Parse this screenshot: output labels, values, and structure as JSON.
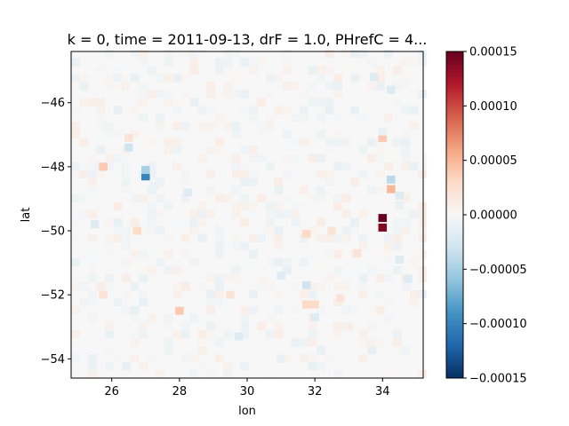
{
  "chart_data": {
    "type": "heatmap",
    "title": "k = 0, time = 2011-09-13, drF = 1.0, PHrefC = 4...",
    "xlabel": "lon",
    "ylabel": "lat",
    "xlim": [
      24.8,
      35.2
    ],
    "ylim": [
      -54.6,
      -44.4
    ],
    "x_ticks": [
      26,
      28,
      30,
      32,
      34
    ],
    "x_tick_labels": [
      "26",
      "28",
      "30",
      "32",
      "34"
    ],
    "y_ticks": [
      -46,
      -48,
      -50,
      -52,
      -54
    ],
    "y_tick_labels": [
      "−46",
      "−48",
      "−50",
      "−52",
      "−54"
    ],
    "grid": false,
    "colormap": "RdBu_r",
    "clim": [
      -0.00015,
      0.00015
    ],
    "colorbar_ticks": [
      0.00015,
      0.0001,
      5e-05,
      0,
      -5e-05,
      -0.0001,
      -0.00015
    ],
    "colorbar_tick_labels": [
      "0.00015",
      "0.00010",
      "0.00005",
      "0.00000",
      "−0.00005",
      "−0.00010",
      "−0.00015"
    ],
    "cell_size": [
      0.25,
      0.25
    ],
    "background_value": 0.0,
    "notable_cells": [
      {
        "lon": 34.0,
        "lat": -49.6,
        "value": 0.00015
      },
      {
        "lon": 34.0,
        "lat": -49.9,
        "value": 0.00014
      },
      {
        "lon": 34.25,
        "lat": -48.7,
        "value": 5e-05
      },
      {
        "lon": 34.25,
        "lat": -48.4,
        "value": -4e-05
      },
      {
        "lon": 34.5,
        "lat": -48.9,
        "value": -2e-05
      },
      {
        "lon": 34.5,
        "lat": -49.2,
        "value": -1e-05
      },
      {
        "lon": 34.0,
        "lat": -47.1,
        "value": 4e-05
      },
      {
        "lon": 34.0,
        "lat": -46.9,
        "value": -1e-05
      },
      {
        "lon": 27.0,
        "lat": -48.3,
        "value": -0.0001
      },
      {
        "lon": 27.0,
        "lat": -48.1,
        "value": -5e-05
      },
      {
        "lon": 25.75,
        "lat": -48.0,
        "value": 4e-05
      },
      {
        "lon": 26.5,
        "lat": -47.4,
        "value": -3e-05
      },
      {
        "lon": 26.5,
        "lat": -47.1,
        "value": 2e-05
      },
      {
        "lon": 25.5,
        "lat": -49.8,
        "value": -2e-05
      },
      {
        "lon": 26.75,
        "lat": -50.0,
        "value": 3e-05
      },
      {
        "lon": 31.75,
        "lat": -50.1,
        "value": 3e-05
      },
      {
        "lon": 31.75,
        "lat": -51.7,
        "value": -3e-05
      },
      {
        "lon": 31.0,
        "lat": -51.4,
        "value": -2e-05
      },
      {
        "lon": 28.0,
        "lat": -52.5,
        "value": 4e-05
      },
      {
        "lon": 31.75,
        "lat": -52.3,
        "value": 3e-05
      },
      {
        "lon": 32.0,
        "lat": -52.3,
        "value": 3e-05
      },
      {
        "lon": 32.75,
        "lat": -52.1,
        "value": 2e-05
      },
      {
        "lon": 29.5,
        "lat": -52.0,
        "value": 2e-05
      },
      {
        "lon": 25.75,
        "lat": -52.0,
        "value": 2e-05
      },
      {
        "lon": 32.0,
        "lat": -52.7,
        "value": -2e-05
      },
      {
        "lon": 32.5,
        "lat": -50.0,
        "value": 2e-05
      },
      {
        "lon": 33.75,
        "lat": -45.2,
        "value": -2e-05
      },
      {
        "lon": 34.25,
        "lat": -45.6,
        "value": -2e-05
      },
      {
        "lon": 28.25,
        "lat": -48.8,
        "value": -2e-05
      },
      {
        "lon": 33.25,
        "lat": -50.7,
        "value": 2e-05
      },
      {
        "lon": 34.75,
        "lat": -51.5,
        "value": -2e-05
      },
      {
        "lon": 34.5,
        "lat": -50.9,
        "value": -2e-05
      },
      {
        "lon": 27.25,
        "lat": -48.6,
        "value": -1e-05
      },
      {
        "lon": 29.75,
        "lat": -53.3,
        "value": -2e-05
      },
      {
        "lon": 31.0,
        "lat": -54.0,
        "value": -1e-05
      },
      {
        "lon": 33.0,
        "lat": -53.0,
        "value": 1e-05
      }
    ]
  }
}
